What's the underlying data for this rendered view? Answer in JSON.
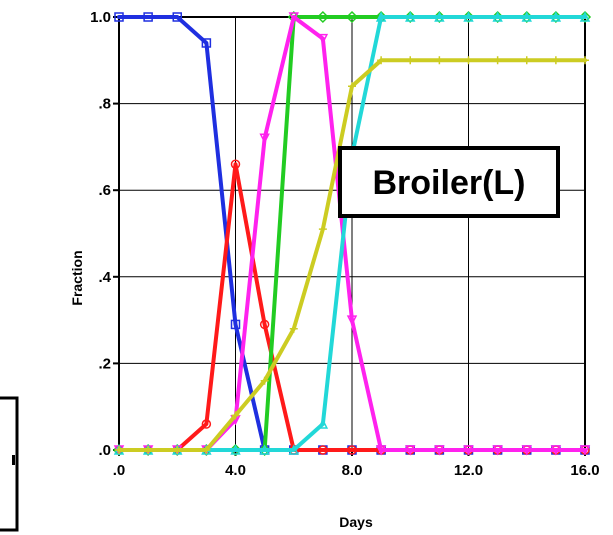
{
  "chart_data": {
    "type": "line",
    "title": "",
    "xlabel": "Days",
    "ylabel": "Fraction",
    "xlim": [
      0,
      16
    ],
    "ylim": [
      0,
      1
    ],
    "x_ticks": [
      0,
      4,
      8,
      12,
      16
    ],
    "x_tick_labels": [
      ".0",
      "4.0",
      "8.0",
      "12.0",
      "16.0"
    ],
    "y_ticks": [
      0,
      0.2,
      0.4,
      0.6,
      0.8,
      1.0
    ],
    "y_tick_labels": [
      ".0",
      ".2",
      ".4",
      ".6",
      ".8",
      "1.0"
    ],
    "grid": true,
    "annotation": "Broiler(L)",
    "series": [
      {
        "color": "#1f2fe0",
        "marker": "square",
        "x": [
          0,
          1,
          2,
          3,
          4,
          5,
          6,
          7,
          8,
          9,
          10,
          11,
          12,
          13,
          14,
          15,
          16
        ],
        "y": [
          1.0,
          1.0,
          1.0,
          0.94,
          0.29,
          0.0,
          0.0,
          0.0,
          0.0,
          0.0,
          0.0,
          0.0,
          0.0,
          0.0,
          0.0,
          0.0,
          0.0
        ]
      },
      {
        "color": "#ff1a1a",
        "marker": "circle",
        "x": [
          0,
          1,
          2,
          3,
          4,
          5,
          6,
          7,
          8,
          9,
          10,
          11,
          12,
          13,
          14,
          15,
          16
        ],
        "y": [
          0.0,
          0.0,
          0.0,
          0.06,
          0.66,
          0.29,
          0.0,
          0.0,
          0.0,
          0.0,
          0.0,
          0.0,
          0.0,
          0.0,
          0.0,
          0.0,
          0.0
        ]
      },
      {
        "color": "#22cc22",
        "marker": "diamond",
        "x": [
          0,
          1,
          2,
          3,
          4,
          5,
          6,
          7,
          8,
          9,
          10,
          11,
          12,
          13,
          14,
          15,
          16
        ],
        "y": [
          0.0,
          0.0,
          0.0,
          0.0,
          0.0,
          0.0,
          1.0,
          1.0,
          1.0,
          1.0,
          1.0,
          1.0,
          1.0,
          1.0,
          1.0,
          1.0,
          1.0
        ]
      },
      {
        "color": "#ff22ee",
        "marker": "triangle-down",
        "x": [
          0,
          1,
          2,
          3,
          4,
          5,
          6,
          7,
          8,
          9,
          10,
          11,
          12,
          13,
          14,
          15,
          16
        ],
        "y": [
          0.0,
          0.0,
          0.0,
          0.0,
          0.07,
          0.72,
          1.0,
          0.95,
          0.3,
          0.0,
          0.0,
          0.0,
          0.0,
          0.0,
          0.0,
          0.0,
          0.0
        ]
      },
      {
        "color": "#22d8d8",
        "marker": "triangle-up",
        "x": [
          0,
          1,
          2,
          3,
          4,
          5,
          6,
          7,
          8,
          9,
          10,
          11,
          12,
          13,
          14,
          15,
          16
        ],
        "y": [
          0.0,
          0.0,
          0.0,
          0.0,
          0.0,
          0.0,
          0.0,
          0.06,
          0.68,
          1.0,
          1.0,
          1.0,
          1.0,
          1.0,
          1.0,
          1.0,
          1.0
        ]
      },
      {
        "color": "#cccc22",
        "marker": "plus",
        "x": [
          0,
          1,
          2,
          3,
          4,
          5,
          6,
          7,
          8,
          9,
          10,
          11,
          12,
          13,
          14,
          15,
          16
        ],
        "y": [
          0.0,
          0.0,
          0.0,
          0.0,
          0.08,
          0.16,
          0.28,
          0.51,
          0.84,
          0.9,
          0.9,
          0.9,
          0.9,
          0.9,
          0.9,
          0.9,
          0.9
        ]
      }
    ]
  }
}
